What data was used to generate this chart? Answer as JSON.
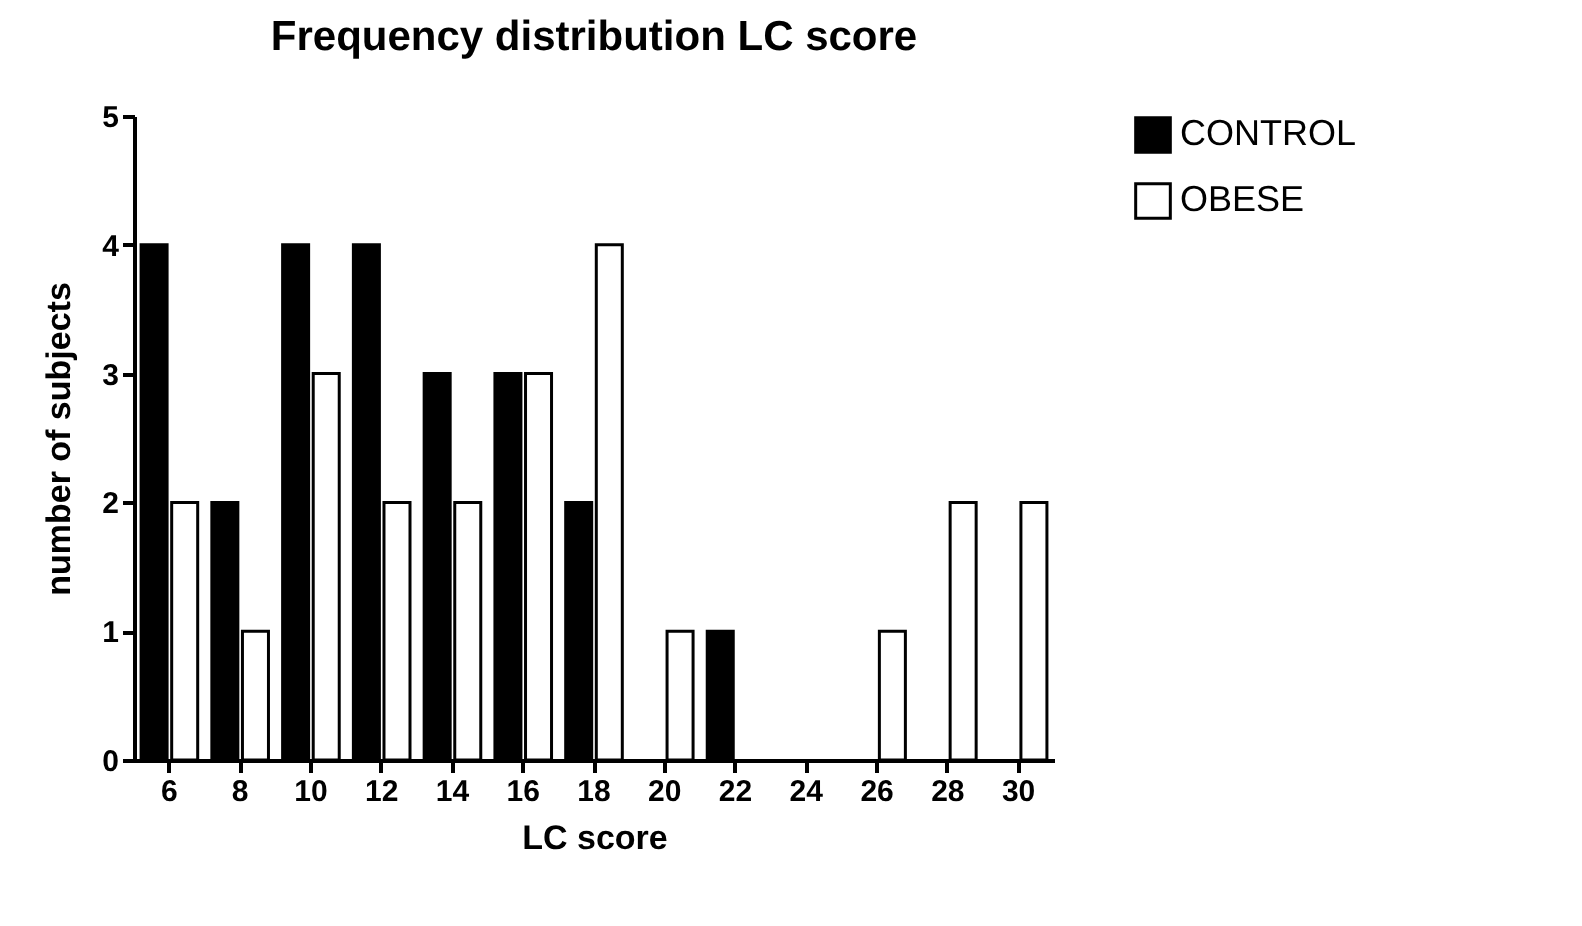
{
  "chart_data": {
    "type": "bar",
    "title": "Frequency distribution LC score",
    "xlabel": "LC score",
    "ylabel": "number of subjects",
    "categories": [
      "6",
      "8",
      "10",
      "12",
      "14",
      "16",
      "18",
      "20",
      "22",
      "24",
      "26",
      "28",
      "30"
    ],
    "series": [
      {
        "name": "CONTROL",
        "color": "#000000",
        "values": [
          4,
          2,
          4,
          4,
          3,
          3,
          2,
          0,
          1,
          0,
          0,
          0,
          0
        ]
      },
      {
        "name": "OBESE",
        "color": "#ffffff",
        "values": [
          2,
          1,
          3,
          2,
          2,
          3,
          4,
          1,
          0,
          0,
          1,
          2,
          2
        ]
      }
    ],
    "ylim": [
      0,
      5
    ],
    "yticks": [
      0,
      1,
      2,
      3,
      4,
      5
    ],
    "grid": false,
    "legend": "top right"
  }
}
